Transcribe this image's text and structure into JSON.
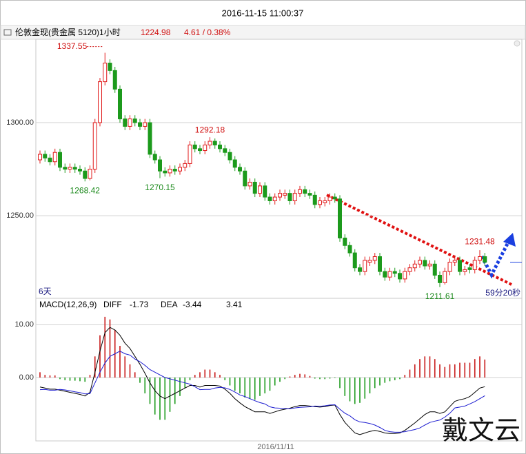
{
  "title": "2016-11-15 11:00:37",
  "header": {
    "instrument": "伦敦金现(贵金属 5120)1小时",
    "change": "4.61 / 0.38%"
  },
  "watermark": "戴文云",
  "chart_data": [
    {
      "type": "candlestick",
      "up_color": "#e01818",
      "down_color": "#1c9a1c",
      "grid": true,
      "ylim": [
        1205.6,
        1344.8
      ],
      "yticks": [
        {
          "value": 1250,
          "label": "1250.00"
        },
        {
          "value": 1300,
          "label": "1300.00"
        }
      ],
      "x_label": "2016/11/11",
      "period_label": "6天",
      "countdown": "59分20秒",
      "open": [
        1280,
        1283,
        1281,
        1279,
        1284,
        1276,
        1275,
        1276,
        1275,
        1274,
        1270,
        1275,
        1300,
        1322,
        1332,
        1328,
        1318,
        1302,
        1298,
        1302,
        1300,
        1298,
        1300,
        1283,
        1280,
        1274,
        1273,
        1275,
        1274,
        1276,
        1278,
        1288,
        1286,
        1285,
        1288,
        1290,
        1288,
        1286,
        1284,
        1280,
        1276,
        1274,
        1266,
        1268,
        1262,
        1266,
        1260,
        1258,
        1260,
        1261,
        1262,
        1258,
        1262,
        1264,
        1262,
        1261,
        1256,
        1257,
        1258,
        1260,
        1259,
        1238,
        1234,
        1230,
        1222,
        1220,
        1225,
        1226,
        1228,
        1220,
        1217,
        1220,
        1219,
        1216,
        1220,
        1222,
        1224,
        1226,
        1223,
        1224,
        1218,
        1214,
        1220,
        1225,
        1226,
        1220,
        1222,
        1221,
        1226,
        1228
      ],
      "high": [
        1285,
        1285,
        1283,
        1286,
        1286,
        1278,
        1278,
        1278,
        1277,
        1276,
        1277,
        1302,
        1324,
        1337.55,
        1334,
        1330,
        1320,
        1304,
        1304,
        1304,
        1302,
        1302,
        1302,
        1285,
        1282,
        1276,
        1277,
        1277,
        1278,
        1280,
        1290,
        1290,
        1288,
        1290,
        1292.18,
        1291.5,
        1290,
        1288,
        1286,
        1282,
        1278,
        1276,
        1270,
        1270,
        1268,
        1268,
        1262,
        1262,
        1264,
        1264,
        1264,
        1264,
        1266,
        1266,
        1264,
        1263,
        1260,
        1260,
        1262,
        1262,
        1261,
        1240,
        1236,
        1232,
        1224,
        1228,
        1228,
        1230,
        1230,
        1222,
        1222,
        1222,
        1221,
        1222,
        1224,
        1226,
        1228,
        1228,
        1226,
        1226,
        1220,
        1222,
        1227,
        1228,
        1228,
        1223,
        1224,
        1228,
        1231.48,
        1230
      ],
      "low": [
        1278,
        1279,
        1277,
        1277,
        1274,
        1273,
        1273,
        1273,
        1272,
        1268.42,
        1269,
        1273,
        1298,
        1320,
        1326,
        1316,
        1300,
        1296,
        1296,
        1298,
        1296,
        1296,
        1281,
        1278,
        1270.15,
        1271,
        1271,
        1272,
        1272,
        1274,
        1276,
        1284,
        1283,
        1283,
        1286,
        1286,
        1284,
        1282,
        1278,
        1274,
        1272,
        1264,
        1264,
        1260,
        1260,
        1258,
        1256,
        1256,
        1258,
        1259,
        1256,
        1256,
        1260,
        1260,
        1259,
        1254,
        1254,
        1255,
        1256,
        1257,
        1236,
        1232,
        1228,
        1220,
        1218,
        1218,
        1223,
        1224,
        1218,
        1215,
        1215,
        1217,
        1214,
        1214,
        1218,
        1220,
        1222,
        1221,
        1221,
        1216,
        1211.61,
        1213,
        1218,
        1223,
        1218,
        1218,
        1219,
        1219,
        1224,
        1223
      ],
      "close": [
        1283,
        1281,
        1279,
        1284,
        1276,
        1275,
        1276,
        1275,
        1274,
        1270,
        1275,
        1300,
        1322,
        1332,
        1328,
        1318,
        1302,
        1298,
        1302,
        1300,
        1298,
        1300,
        1283,
        1280,
        1274,
        1273,
        1275,
        1274,
        1276,
        1278,
        1288,
        1286,
        1285,
        1288,
        1290,
        1288,
        1286,
        1284,
        1280,
        1276,
        1274,
        1266,
        1268,
        1262,
        1266,
        1260,
        1258,
        1260,
        1262,
        1262,
        1258,
        1262,
        1264,
        1262,
        1261,
        1256,
        1258,
        1258,
        1260,
        1259,
        1238,
        1234,
        1230,
        1222,
        1220,
        1226,
        1226,
        1228,
        1220,
        1217,
        1220,
        1219,
        1216,
        1220,
        1222,
        1224,
        1226,
        1223,
        1224,
        1218,
        1214,
        1220,
        1225,
        1226,
        1220,
        1221,
        1221,
        1226,
        1228,
        1224.98
      ]
    },
    {
      "type": "macd",
      "label": "MACD(12,26,9)",
      "ylim": [
        -12,
        15
      ],
      "yticks": [
        {
          "value": 0,
          "label": "0.00"
        },
        {
          "value": 10,
          "label": "10.00"
        }
      ],
      "hist": {
        "up_color": "#c81818",
        "down_color": "#1c9a1c",
        "values": [
          1,
          0.5,
          0.4,
          0.4,
          -0.3,
          -0.5,
          -0.6,
          -0.6,
          -0.7,
          -0.8,
          0.5,
          4,
          8,
          11.5,
          11,
          9,
          6,
          4,
          2.5,
          1,
          -1,
          -3,
          -5,
          -7,
          -8,
          -8,
          -6.5,
          -5,
          -3.5,
          -2,
          -0.5,
          0.5,
          1,
          1.5,
          1.5,
          1,
          0.5,
          -0.5,
          -1.5,
          -2.5,
          -3,
          -3.8,
          -4,
          -4.2,
          -3.5,
          -3,
          -2.5,
          -1.5,
          -0.8,
          -0.3,
          0.2,
          0.5,
          0.7,
          0.6,
          0.3,
          -0.2,
          -0.3,
          -0.3,
          -0.2,
          -0.1,
          -2,
          -3.5,
          -4.5,
          -5,
          -4.8,
          -4,
          -3,
          -2,
          -1.5,
          -1,
          -0.7,
          -0.5,
          -0.3,
          0.5,
          1.5,
          2.5,
          3.5,
          4,
          4,
          3.5,
          2.5,
          2,
          2.5,
          2.5,
          2.8,
          2.8,
          2.8,
          3.5,
          4,
          3.41
        ]
      },
      "series": [
        {
          "name": "DIFF",
          "color": "#000000",
          "values": [
            -1.8,
            -2,
            -2.2,
            -2.2,
            -2.4,
            -2.6,
            -2.8,
            -3,
            -3.2,
            -3.5,
            -2.8,
            1,
            5,
            8.5,
            9.5,
            9,
            8,
            6.5,
            5.5,
            4,
            2.5,
            0.8,
            -1,
            -2.5,
            -3.5,
            -4,
            -3.5,
            -3,
            -2.5,
            -2,
            -1.5,
            -1.5,
            -1.8,
            -1.5,
            -1.5,
            -1.5,
            -1.6,
            -2.2,
            -3,
            -4,
            -4.8,
            -5.5,
            -6,
            -6.5,
            -6.5,
            -6.5,
            -6.8,
            -6.5,
            -6.2,
            -6,
            -5.8,
            -5.5,
            -5.3,
            -5.3,
            -5.4,
            -5.5,
            -5.6,
            -5.5,
            -5.3,
            -5.2,
            -7,
            -8.5,
            -9.5,
            -10.5,
            -10.8,
            -10.5,
            -10.2,
            -10,
            -10.2,
            -10.5,
            -10.6,
            -10.6,
            -10.5,
            -10,
            -9.3,
            -8.6,
            -7.8,
            -7,
            -6.5,
            -6.5,
            -6.8,
            -6.5,
            -5.5,
            -4.5,
            -4.2,
            -4,
            -3.6,
            -2.8,
            -2,
            -1.73
          ]
        },
        {
          "name": "DEA",
          "color": "#1a1ad0",
          "values": [
            -2.3,
            -2.25,
            -2.4,
            -2.4,
            -2.25,
            -2.35,
            -2.5,
            -2.7,
            -2.85,
            -3.1,
            -3.05,
            -1,
            1,
            2.75,
            4,
            4.5,
            5,
            4.5,
            4.25,
            3.5,
            3,
            2.3,
            1.5,
            1,
            0.5,
            0,
            -0.25,
            -0.5,
            -0.75,
            -1,
            -1.25,
            -1.75,
            -2.3,
            -2.25,
            -2.25,
            -2,
            -1.85,
            -1.95,
            -2.25,
            -2.75,
            -3.3,
            -3.6,
            -4,
            -4.4,
            -4.75,
            -5,
            -5.55,
            -5.75,
            -5.8,
            -5.85,
            -5.9,
            -5.75,
            -5.65,
            -5.6,
            -5.55,
            -5.4,
            -5.45,
            -5.35,
            -5.2,
            -5.15,
            -6,
            -6.75,
            -7.25,
            -8,
            -8.4,
            -8.5,
            -8.7,
            -9,
            -9.45,
            -10,
            -10.25,
            -10.35,
            -10.35,
            -10.25,
            -10.05,
            -9.85,
            -9.55,
            -9,
            -8.5,
            -8.25,
            -8.05,
            -7.5,
            -6.75,
            -5.75,
            -5.6,
            -5.4,
            -5,
            -4.55,
            -4,
            -3.44
          ]
        }
      ]
    }
  ]
}
